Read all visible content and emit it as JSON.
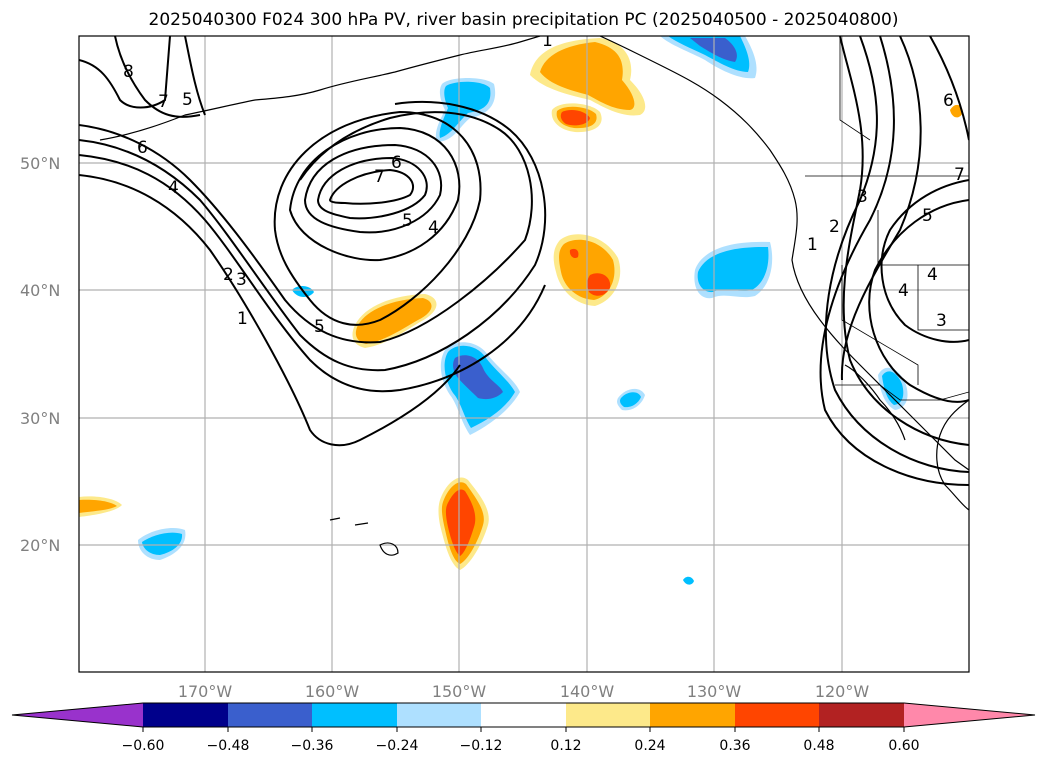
{
  "title": "2025040300 F024 300 hPa PV, river basin precipitation PC (2025040500 - 2025040800)",
  "map": {
    "lat_labels": [
      "50°N",
      "40°N",
      "30°N",
      "20°N"
    ],
    "lon_labels": [
      "170°W",
      "160°W",
      "150°W",
      "140°W",
      "130°W",
      "120°W"
    ],
    "contour_labels": [
      "8",
      "7",
      "5",
      "6",
      "4",
      "6",
      "7",
      "5",
      "4",
      "3",
      "2",
      "1",
      "5",
      "1",
      "6",
      "7",
      "3",
      "2",
      "1",
      "5",
      "4",
      "4",
      "3"
    ],
    "shading_colors": {
      "pos_weak": "#fde98a",
      "pos_mid": "#ffa500",
      "pos_strong": "#ff4500",
      "neg_weak": "#aee0ff",
      "neg_mid": "#00bfff",
      "neg_strong": "#3a5fcd"
    }
  },
  "colorbar": {
    "tick_labels": [
      "−0.60",
      "−0.48",
      "−0.36",
      "−0.24",
      "−0.12",
      "0.12",
      "0.24",
      "0.36",
      "0.48",
      "0.60"
    ],
    "colors": [
      "#9932cc",
      "#00008b",
      "#3a5fcd",
      "#00bfff",
      "#aee0ff",
      "#ffffff",
      "#fde98a",
      "#ffa500",
      "#ff4500",
      "#b22222",
      "#ff88aa"
    ]
  }
}
